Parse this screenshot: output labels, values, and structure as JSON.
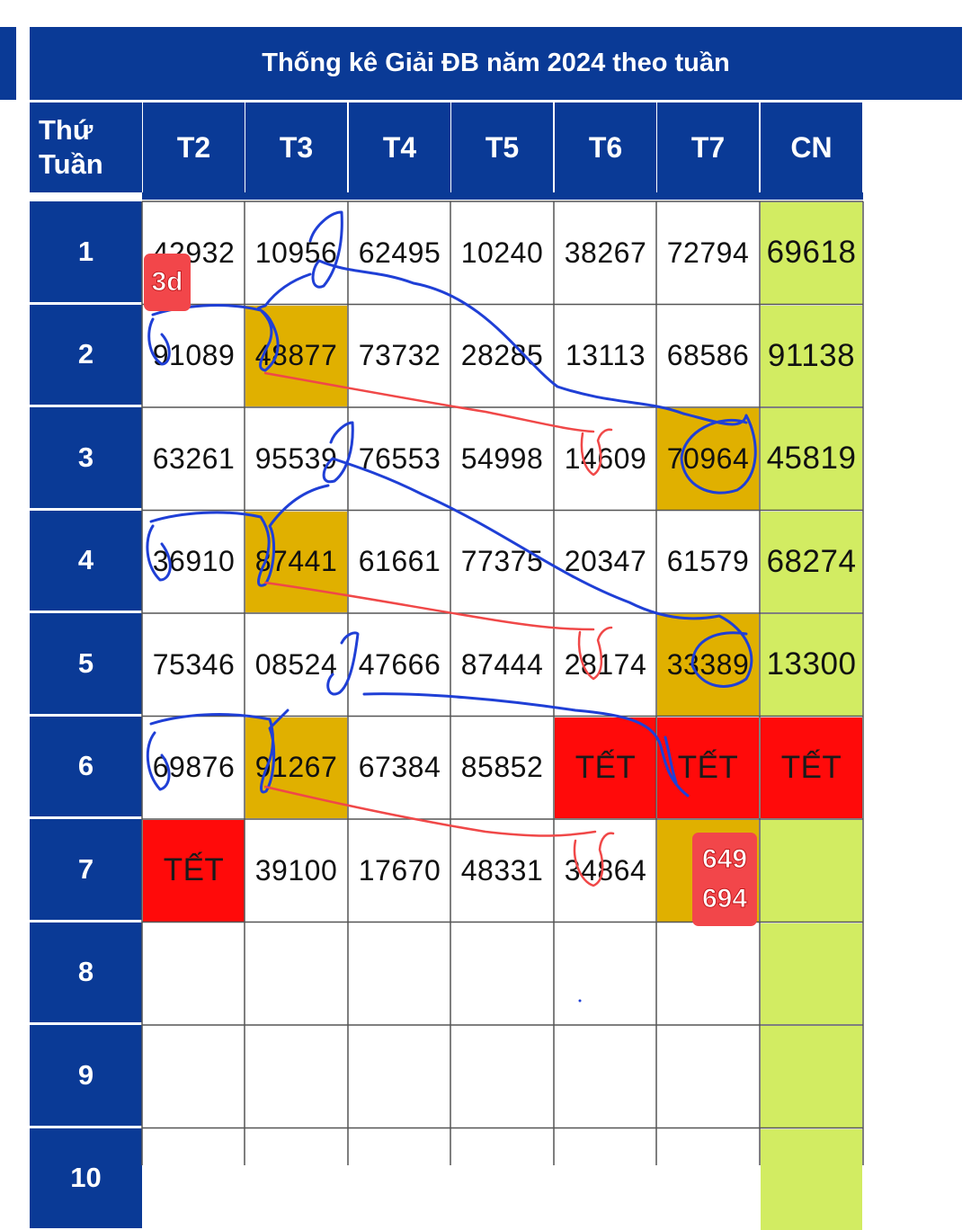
{
  "title": "Thống kê Giải ĐB năm 2024 theo tuần",
  "corner": {
    "line1": "Thứ",
    "line2": "Tuần"
  },
  "days": [
    "T2",
    "T3",
    "T4",
    "T5",
    "T6",
    "T7",
    "CN"
  ],
  "weeks": [
    {
      "label": "1",
      "cells": [
        "42932",
        "10956",
        "62495",
        "10240",
        "38267",
        "72794",
        "69618"
      ]
    },
    {
      "label": "2",
      "cells": [
        "91089",
        "48877",
        "73732",
        "28285",
        "13113",
        "68586",
        "91138"
      ]
    },
    {
      "label": "3",
      "cells": [
        "63261",
        "95539",
        "76553",
        "54998",
        "14609",
        "70964",
        "45819"
      ]
    },
    {
      "label": "4",
      "cells": [
        "36910",
        "87441",
        "61661",
        "77375",
        "20347",
        "61579",
        "68274"
      ]
    },
    {
      "label": "5",
      "cells": [
        "75346",
        "08524",
        "47666",
        "87444",
        "28174",
        "33389",
        "13300"
      ]
    },
    {
      "label": "6",
      "cells": [
        "69876",
        "91267",
        "67384",
        "85852",
        "TẾT",
        "TẾT",
        "TẾT"
      ]
    },
    {
      "label": "7",
      "cells": [
        "TẾT",
        "39100",
        "17670",
        "48331",
        "34864",
        "",
        ""
      ]
    },
    {
      "label": "8",
      "cells": [
        "",
        "",
        "",
        "",
        "",
        "",
        ""
      ]
    },
    {
      "label": "9",
      "cells": [
        "",
        "",
        "",
        "",
        "",
        "",
        ""
      ]
    },
    {
      "label": "10",
      "cells": [
        "",
        "",
        "",
        "",
        "",
        "",
        ""
      ]
    }
  ],
  "highlights": {
    "gold": [
      [
        1,
        1
      ],
      [
        2,
        5
      ],
      [
        3,
        1
      ],
      [
        4,
        5
      ],
      [
        5,
        1
      ],
      [
        6,
        5
      ]
    ],
    "red": [
      [
        5,
        4
      ],
      [
        5,
        5
      ],
      [
        5,
        6
      ],
      [
        6,
        0
      ]
    ]
  },
  "annotations": {
    "badge_3d": "3d",
    "badge_week7_line1": "649",
    "badge_week7_line2": "694"
  },
  "colors": {
    "header_blue": "#0a3a96",
    "gold": "#e0b000",
    "tet_red": "#ff0a0a",
    "cn_green": "#d2ec62",
    "ink_blue": "#1f3fd6",
    "ink_red": "#f04848",
    "badge_red": "#f2464a"
  }
}
